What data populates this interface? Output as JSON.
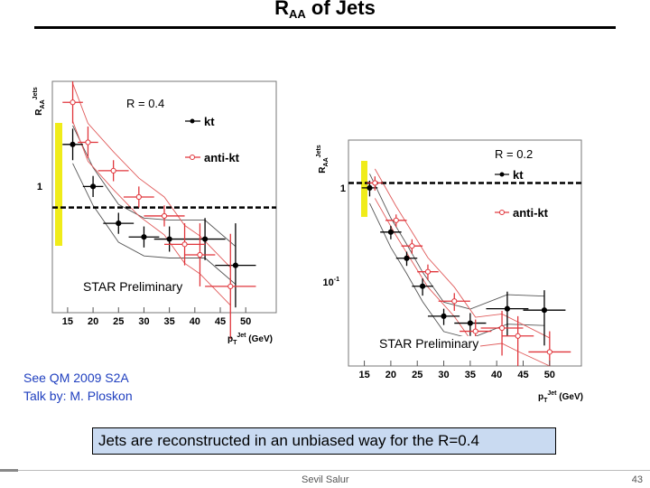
{
  "slide": {
    "title_main": "R",
    "title_sub": "AA",
    "title_rest": " of Jets",
    "ref_line1": "See QM 2009 S2A",
    "ref_line2": "Talk by: M. Ploskon",
    "callout": "Jets are reconstructed in an unbiased way for the R=0.4",
    "author": "Sevil Salur",
    "page_number": "43"
  },
  "colors": {
    "kt": "#000000",
    "anti_kt": "#e0353b",
    "band_kt": "#555555",
    "band_anti_kt": "#e05a5a",
    "highlight": "#f0ec1a",
    "callout_bg": "#c9daf1",
    "ref_text": "#1f3fbf"
  },
  "chart_data": [
    {
      "type": "scatter",
      "label": "R = 0.4",
      "watermark": "STAR Preliminary",
      "ylabel": "R_AA^Jets",
      "xlabel": "p_T^Jet (GeV)",
      "xlim": [
        12,
        56
      ],
      "ylim": [
        0,
        2.2
      ],
      "yscale": "linear",
      "x_ticks": [
        15,
        20,
        25,
        30,
        35,
        40,
        45,
        50
      ],
      "y_ticks": [
        {
          "value": 1,
          "label": "1"
        }
      ],
      "reference_line": 1,
      "legend": [
        "kt",
        "anti-kt"
      ],
      "series": [
        {
          "name": "kt",
          "points": [
            {
              "x": 16,
              "y": 1.6,
              "xerr": 2,
              "yerr": 0.15
            },
            {
              "x": 20,
              "y": 1.2,
              "xerr": 2,
              "yerr": 0.1
            },
            {
              "x": 25,
              "y": 0.85,
              "xerr": 3,
              "yerr": 0.1
            },
            {
              "x": 30,
              "y": 0.72,
              "xerr": 3,
              "yerr": 0.1
            },
            {
              "x": 35,
              "y": 0.7,
              "xerr": 3,
              "yerr": 0.12
            },
            {
              "x": 42,
              "y": 0.7,
              "xerr": 4,
              "yerr": 0.2
            },
            {
              "x": 48,
              "y": 0.45,
              "xerr": 4,
              "yerr": 0.4
            }
          ]
        },
        {
          "name": "anti-kt",
          "points": [
            {
              "x": 16,
              "y": 2.0,
              "xerr": 2,
              "yerr": 0.2
            },
            {
              "x": 19,
              "y": 1.62,
              "xerr": 2,
              "yerr": 0.15
            },
            {
              "x": 24,
              "y": 1.35,
              "xerr": 3,
              "yerr": 0.1
            },
            {
              "x": 29,
              "y": 1.1,
              "xerr": 3,
              "yerr": 0.1
            },
            {
              "x": 34,
              "y": 0.92,
              "xerr": 4,
              "yerr": 0.1
            },
            {
              "x": 38,
              "y": 0.65,
              "xerr": 4,
              "yerr": 0.2
            },
            {
              "x": 41,
              "y": 0.55,
              "xerr": 3,
              "yerr": 0.3
            },
            {
              "x": 47,
              "y": 0.25,
              "xerr": 5,
              "yerr": 0.5
            }
          ]
        }
      ],
      "axis_tick_labels": [
        "15",
        "20",
        "25",
        "30",
        "35",
        "40",
        "45",
        "50"
      ]
    },
    {
      "type": "scatter",
      "label": "R = 0.2",
      "watermark": "STAR Preliminary",
      "ylabel": "R_AA^Jets",
      "xlabel": "p_T^Jet (GeV)",
      "xlim": [
        12,
        56
      ],
      "ylim": [
        0.02,
        2.5
      ],
      "yscale": "log",
      "x_ticks": [
        15,
        20,
        25,
        30,
        35,
        40,
        45,
        50
      ],
      "y_ticks": [
        {
          "value": 1,
          "label": "1"
        },
        {
          "value": 0.1,
          "label": "10^-1"
        }
      ],
      "reference_line": 1,
      "legend": [
        "kt",
        "anti-kt"
      ],
      "series": [
        {
          "name": "kt",
          "points": [
            {
              "x": 16,
              "y": 0.9,
              "xerr": 1.5,
              "yerr": 0.15
            },
            {
              "x": 20,
              "y": 0.35,
              "xerr": 2,
              "yerr": 0.05
            },
            {
              "x": 23,
              "y": 0.2,
              "xerr": 2,
              "yerr": 0.03
            },
            {
              "x": 26,
              "y": 0.11,
              "xerr": 2,
              "yerr": 0.02
            },
            {
              "x": 30,
              "y": 0.058,
              "xerr": 3,
              "yerr": 0.01
            },
            {
              "x": 35,
              "y": 0.05,
              "xerr": 3,
              "yerr": 0.012
            },
            {
              "x": 42,
              "y": 0.068,
              "xerr": 4,
              "yerr": 0.03
            },
            {
              "x": 49,
              "y": 0.066,
              "xerr": 4,
              "yerr": 0.035
            }
          ]
        },
        {
          "name": "anti-kt",
          "points": [
            {
              "x": 17,
              "y": 1.0,
              "xerr": 1.5,
              "yerr": 0.15
            },
            {
              "x": 21,
              "y": 0.45,
              "xerr": 2,
              "yerr": 0.06
            },
            {
              "x": 24,
              "y": 0.26,
              "xerr": 2,
              "yerr": 0.04
            },
            {
              "x": 27,
              "y": 0.15,
              "xerr": 2,
              "yerr": 0.025
            },
            {
              "x": 32,
              "y": 0.08,
              "xerr": 3,
              "yerr": 0.015
            },
            {
              "x": 36,
              "y": 0.042,
              "xerr": 3,
              "yerr": 0.012
            },
            {
              "x": 41,
              "y": 0.045,
              "xerr": 4,
              "yerr": 0.02
            },
            {
              "x": 44,
              "y": 0.038,
              "xerr": 3,
              "yerr": 0.02
            },
            {
              "x": 50,
              "y": 0.027,
              "xerr": 4,
              "yerr": 0.015
            }
          ]
        }
      ],
      "axis_tick_labels": [
        "15",
        "20",
        "25",
        "30",
        "35",
        "40",
        "45",
        "50"
      ]
    }
  ],
  "text": {
    "plot1_label": "R = 0.4",
    "plot2_label": "R = 0.2",
    "star1": "STAR Preliminary",
    "star2": "STAR Preliminary",
    "legend_kt": "kt",
    "legend_antikt": "anti-kt",
    "y_one": "1",
    "y_tenth": "10"
  }
}
